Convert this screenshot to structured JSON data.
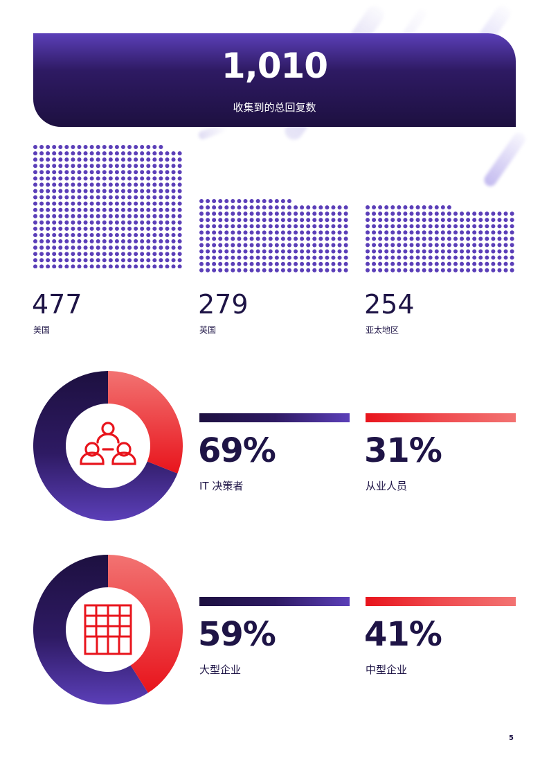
{
  "total": {
    "value": "1,010",
    "label": "收集到的总回复数"
  },
  "regions": [
    {
      "value": "477",
      "label": "美国"
    },
    {
      "value": "279",
      "label": "英国"
    },
    {
      "value": "254",
      "label": "亚太地区"
    }
  ],
  "roles": {
    "icon": "people-icon",
    "items": [
      {
        "percent": "69%",
        "label": "IT 决策者"
      },
      {
        "percent": "31%",
        "label": "从业人员"
      }
    ],
    "donut_share": 0.69
  },
  "company_size": {
    "icon": "building-icon",
    "items": [
      {
        "percent": "59%",
        "label": "大型企业"
      },
      {
        "percent": "41%",
        "label": "中型企业"
      }
    ],
    "donut_share": 0.59
  },
  "colors": {
    "purple_dark": "#1d1040",
    "purple": "#5b3fb8",
    "dot": "#5b3fb8",
    "red": "#e8141c",
    "red_light": "#f27372",
    "text": "#1e1446"
  },
  "page_number": "5"
}
